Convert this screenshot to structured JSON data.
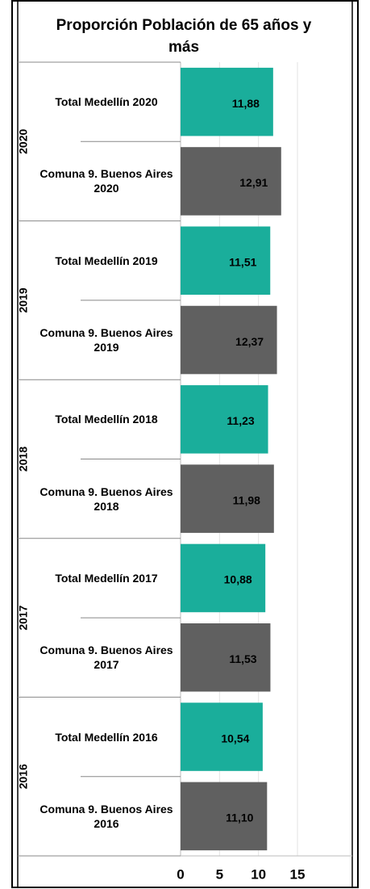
{
  "chart_data": {
    "type": "bar",
    "orientation": "horizontal",
    "title": "Proporción Población de 65 años y más",
    "groups": [
      "2020",
      "2019",
      "2018",
      "2017",
      "2016"
    ],
    "categories": [
      "Total Medellín 2020",
      "Comuna 9. Buenos Aires 2020",
      "Total Medellín 2019",
      "Comuna 9. Buenos Aires 2019",
      "Total Medellín 2018",
      "Comuna 9. Buenos Aires 2018",
      "Total Medellín 2017",
      "Comuna 9. Buenos Aires 2017",
      "Total Medellín 2016",
      "Comuna 9. Buenos Aires 2016"
    ],
    "values": [
      11.88,
      12.91,
      11.51,
      12.37,
      11.23,
      11.98,
      10.88,
      11.53,
      10.54,
      11.1
    ],
    "value_labels": [
      "11,88",
      "12,91",
      "11,51",
      "12,37",
      "11,23",
      "11,98",
      "10,88",
      "11,53",
      "10,54",
      "11,10"
    ],
    "colors": [
      "#1aae9b",
      "#606060"
    ],
    "xlim": [
      0,
      15
    ],
    "xticks": [
      0,
      5,
      10,
      15
    ],
    "grid": true
  }
}
